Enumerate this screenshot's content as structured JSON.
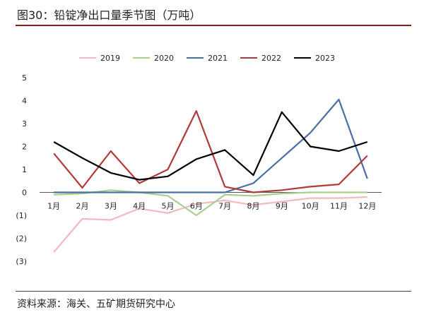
{
  "title": "图30：铅锭净出口量季节图（万吨）",
  "source": "资料来源：海关、五矿期货研究中心",
  "chart_data": {
    "type": "line",
    "categories": [
      "1月",
      "2月",
      "3月",
      "4月",
      "5月",
      "6月",
      "7月",
      "8月",
      "9月",
      "10月",
      "11月",
      "12月"
    ],
    "ylim": [
      -3,
      5
    ],
    "yticks": [
      5,
      4,
      3,
      2,
      1,
      0,
      -1,
      -2,
      -3
    ],
    "ytick_labels": [
      "5",
      "4",
      "3",
      "2",
      "1",
      "0",
      "(1)",
      "(2)",
      "(3)"
    ],
    "negative_tick_color": "#c0392b",
    "grid": false,
    "legend_position": "top",
    "series": [
      {
        "name": "2019",
        "color": "#f2b9c0",
        "values": [
          -2.6,
          -1.15,
          -1.2,
          -0.7,
          -0.9,
          -0.5,
          -0.35,
          -0.55,
          -0.4,
          -0.25,
          -0.25,
          -0.2
        ]
      },
      {
        "name": "2020",
        "color": "#a9d18e",
        "values": [
          -0.1,
          -0.05,
          0.1,
          0.0,
          -0.15,
          -1.0,
          -0.1,
          -0.15,
          -0.05,
          0.0,
          0.0,
          0.0
        ]
      },
      {
        "name": "2021",
        "color": "#4a6fa5",
        "values": [
          0.0,
          0.0,
          0.0,
          0.0,
          0.0,
          0.0,
          0.0,
          0.4,
          1.5,
          2.6,
          4.05,
          0.6
        ]
      },
      {
        "name": "2022",
        "color": "#b03a3a",
        "values": [
          1.7,
          0.2,
          1.8,
          0.4,
          1.0,
          3.55,
          0.25,
          0.0,
          0.1,
          0.25,
          0.35,
          1.6
        ]
      },
      {
        "name": "2023",
        "color": "#000000",
        "values": [
          2.2,
          1.5,
          0.85,
          0.55,
          0.7,
          1.45,
          1.85,
          0.75,
          3.5,
          2.0,
          1.8,
          2.2
        ]
      }
    ]
  }
}
